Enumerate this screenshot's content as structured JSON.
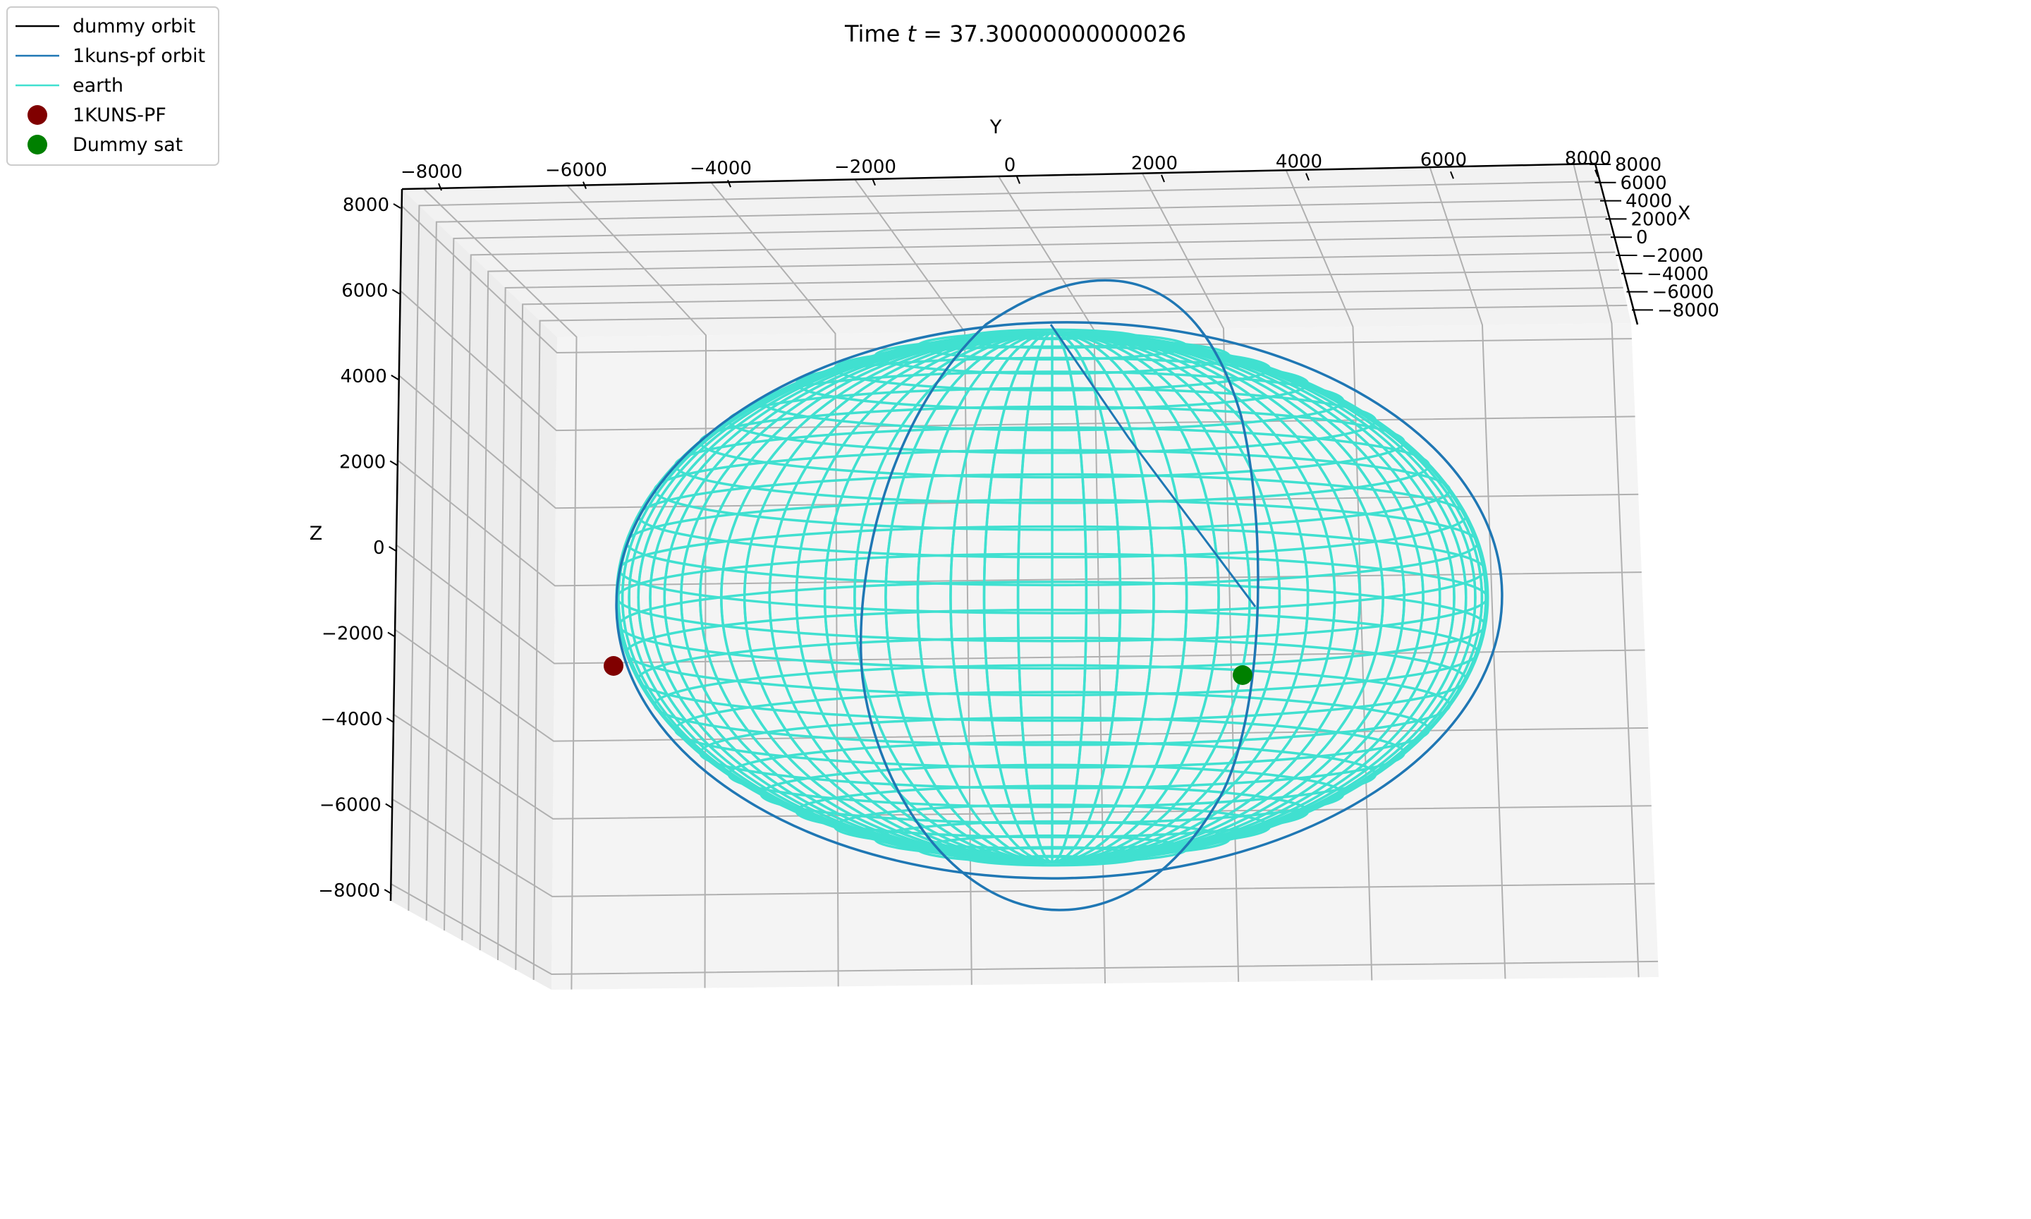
{
  "chart_data": {
    "type": "3d-line",
    "title": "Time t = 37.30000000000026",
    "title_parts": {
      "prefix": "Time ",
      "variable": "t",
      "suffix": " = 37.30000000000026"
    },
    "xlabel": "X",
    "ylabel": "Y",
    "zlabel": "Z",
    "xlim": [
      -8000,
      8000
    ],
    "ylim": [
      -8000,
      8000
    ],
    "zlim": [
      -8000,
      8000
    ],
    "x_ticks": [
      "8000",
      "6000",
      "4000",
      "2000",
      "0",
      "−2000",
      "−4000",
      "−6000",
      "−8000"
    ],
    "y_ticks": [
      "−8000",
      "−6000",
      "−4000",
      "−2000",
      "0",
      "2000",
      "4000",
      "6000",
      "8000"
    ],
    "z_ticks": [
      "8000",
      "6000",
      "4000",
      "2000",
      "0",
      "−2000",
      "−4000",
      "−6000",
      "−8000"
    ],
    "grid": true,
    "legend_placement": "top-left",
    "legend": [
      {
        "label": "dummy orbit",
        "marker": "line",
        "color": "#000000"
      },
      {
        "label": "1kuns-pf orbit",
        "marker": "line",
        "color": "#1f77b4"
      },
      {
        "label": "earth",
        "marker": "line",
        "color": "#40e0d0"
      },
      {
        "label": "1KUNS-PF",
        "marker": "dot",
        "color": "#800000"
      },
      {
        "label": "Dummy sat",
        "marker": "dot",
        "color": "#008000"
      }
    ],
    "earth": {
      "type": "wireframe-sphere",
      "radius_km": 6371,
      "color": "#40e0d0"
    },
    "series": [
      {
        "name": "1kuns-pf orbit",
        "type": "closed-orbit",
        "color": "#1f77b4",
        "approx_radius_km": 6800
      },
      {
        "name": "dummy orbit",
        "type": "closed-orbit",
        "color": "#000000"
      }
    ],
    "points": [
      {
        "name": "1KUNS-PF",
        "color": "#800000",
        "approx_y": -6900,
        "approx_z": -2800
      },
      {
        "name": "Dummy sat",
        "color": "#008000",
        "approx_y": 3400,
        "approx_z": -3000
      }
    ]
  }
}
